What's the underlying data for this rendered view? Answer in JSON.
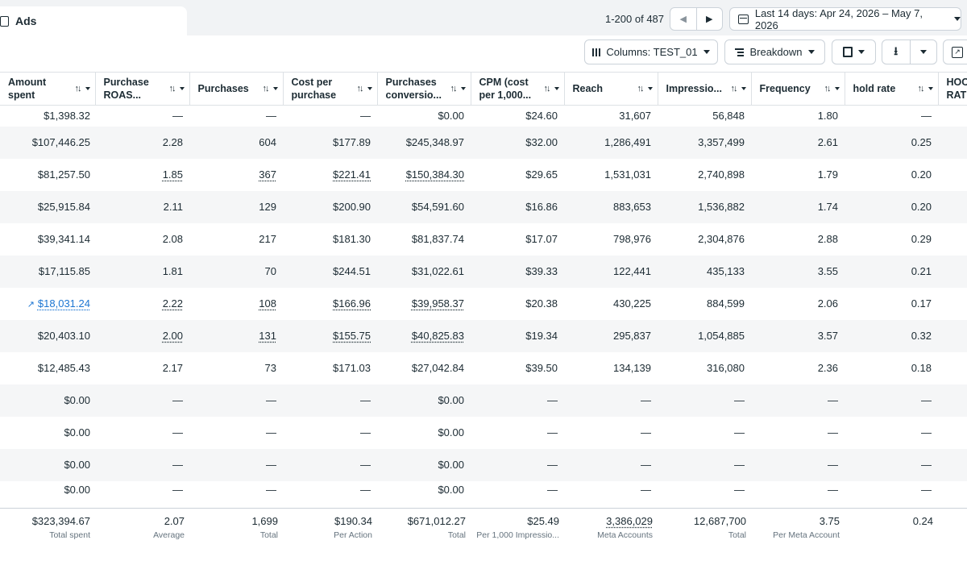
{
  "tab": {
    "label": "Ads"
  },
  "pager": {
    "text": "1-200 of 487"
  },
  "date_range": {
    "label": "Last 14 days: Apr 24, 2026 – May 7, 2026"
  },
  "toolbar": {
    "columns_label": "Columns: TEST_01",
    "breakdown_label": "Breakdown"
  },
  "colors": {
    "link": "#1d76d2",
    "text": "#1c2b33",
    "muted": "#65737e",
    "border": "#cbd2d9"
  },
  "columns": [
    {
      "label": "Amount\nspent"
    },
    {
      "label": "Purchase\nROAS..."
    },
    {
      "label": "Purchases"
    },
    {
      "label": "Cost per\npurchase"
    },
    {
      "label": "Purchases\nconversio..."
    },
    {
      "label": "CPM (cost\nper 1,000..."
    },
    {
      "label": "Reach"
    },
    {
      "label": "Impressio..."
    },
    {
      "label": "Frequency"
    },
    {
      "label": "hold rate"
    },
    {
      "label": "HOO\nRATE"
    }
  ],
  "rows": [
    [
      "$1,398.32",
      "—",
      "—",
      "—",
      "$0.00",
      "$24.60",
      "31,607",
      "56,848",
      "1.80",
      "—",
      ""
    ],
    [
      "$107,446.25",
      "2.28",
      "604",
      "$177.89",
      "$245,348.97",
      "$32.00",
      "1,286,491",
      "3,357,499",
      "2.61",
      "0.25",
      ""
    ],
    [
      "$81,257.50",
      "1.85",
      "367",
      "$221.41",
      "$150,384.30",
      "$29.65",
      "1,531,031",
      "2,740,898",
      "1.79",
      "0.20",
      ""
    ],
    [
      "$25,915.84",
      "2.11",
      "129",
      "$200.90",
      "$54,591.60",
      "$16.86",
      "883,653",
      "1,536,882",
      "1.74",
      "0.20",
      ""
    ],
    [
      "$39,341.14",
      "2.08",
      "217",
      "$181.30",
      "$81,837.74",
      "$17.07",
      "798,976",
      "2,304,876",
      "2.88",
      "0.29",
      ""
    ],
    [
      "$17,115.85",
      "1.81",
      "70",
      "$244.51",
      "$31,022.61",
      "$39.33",
      "122,441",
      "435,133",
      "3.55",
      "0.21",
      ""
    ],
    [
      "$18,031.24",
      "2.22",
      "108",
      "$166.96",
      "$39,958.37",
      "$20.38",
      "430,225",
      "884,599",
      "2.06",
      "0.17",
      ""
    ],
    [
      "$20,403.10",
      "2.00",
      "131",
      "$155.75",
      "$40,825.83",
      "$19.34",
      "295,837",
      "1,054,885",
      "3.57",
      "0.32",
      ""
    ],
    [
      "$12,485.43",
      "2.17",
      "73",
      "$171.03",
      "$27,042.84",
      "$39.50",
      "134,139",
      "316,080",
      "2.36",
      "0.18",
      ""
    ],
    [
      "$0.00",
      "—",
      "—",
      "—",
      "$0.00",
      "—",
      "—",
      "—",
      "—",
      "—",
      ""
    ],
    [
      "$0.00",
      "—",
      "—",
      "—",
      "$0.00",
      "—",
      "—",
      "—",
      "—",
      "—",
      ""
    ],
    [
      "$0.00",
      "—",
      "—",
      "—",
      "$0.00",
      "—",
      "—",
      "—",
      "—",
      "—",
      ""
    ],
    [
      "$0.00",
      "—",
      "—",
      "—",
      "$0.00",
      "—",
      "—",
      "—",
      "—",
      "—",
      ""
    ]
  ],
  "underlined": [
    [
      2,
      1
    ],
    [
      2,
      2
    ],
    [
      2,
      3
    ],
    [
      2,
      4
    ],
    [
      6,
      0
    ],
    [
      6,
      1
    ],
    [
      6,
      2
    ],
    [
      6,
      3
    ],
    [
      6,
      4
    ],
    [
      7,
      1
    ],
    [
      7,
      2
    ],
    [
      7,
      3
    ],
    [
      7,
      4
    ]
  ],
  "link_cells": [
    [
      6,
      0
    ]
  ],
  "summary": [
    {
      "value": "$323,394.67",
      "label": "Total spent"
    },
    {
      "value": "2.07",
      "label": "Average"
    },
    {
      "value": "1,699",
      "label": "Total"
    },
    {
      "value": "$190.34",
      "label": "Per Action"
    },
    {
      "value": "$671,012.27",
      "label": "Total"
    },
    {
      "value": "$25.49",
      "label": "Per 1,000 Impressio..."
    },
    {
      "value": "3,386,029",
      "label": "Meta Accounts"
    },
    {
      "value": "12,687,700",
      "label": "Total"
    },
    {
      "value": "3.75",
      "label": "Per Meta Account"
    },
    {
      "value": "0.24",
      "label": ""
    }
  ]
}
